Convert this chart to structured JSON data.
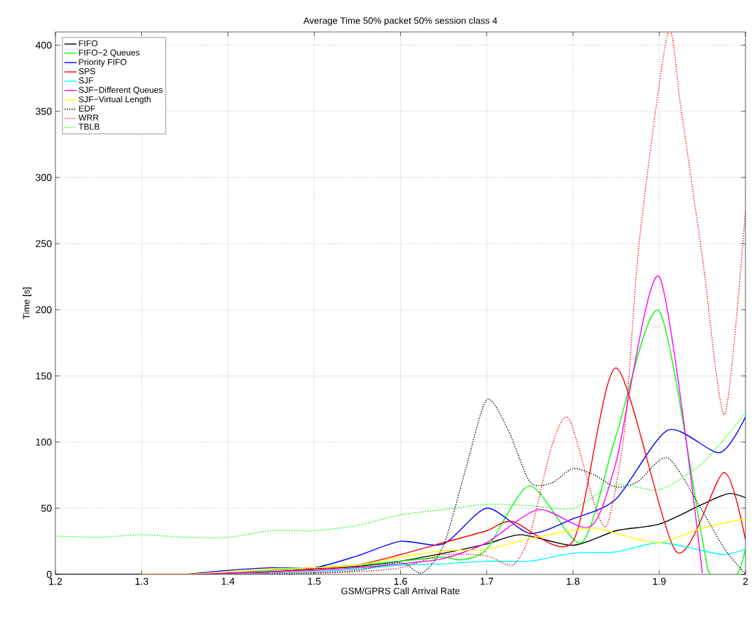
{
  "chart_data": {
    "type": "line",
    "title": "Average Time  50% packet  50% session  class 4",
    "xlabel": "GSM/GPRS Call Arrival Rate",
    "ylabel": "Time [s]",
    "xlim": [
      1.2,
      2
    ],
    "ylim": [
      0,
      410
    ],
    "xticks": [
      1.2,
      1.3,
      1.4,
      1.5,
      1.6,
      1.7,
      1.8,
      1.9,
      2
    ],
    "yticks": [
      0,
      50,
      100,
      150,
      200,
      250,
      300,
      350,
      400
    ],
    "grid": true,
    "legend": "top left",
    "series": [
      {
        "name": "FIFO",
        "color": "#000000",
        "line_style": "solid",
        "x": [
          1.2,
          1.25,
          1.3,
          1.35,
          1.4,
          1.45,
          1.5,
          1.55,
          1.6,
          1.65,
          1.7,
          1.74,
          1.8,
          1.85,
          1.9,
          1.95,
          1.98,
          2.0
        ],
        "values": [
          0,
          0,
          0,
          0,
          1,
          2,
          4,
          6,
          10,
          16,
          23,
          30,
          22,
          33,
          38,
          53,
          61,
          58
        ]
      },
      {
        "name": "FIFO−2 Queues",
        "color": "#00ff00",
        "line_style": "solid",
        "x": [
          1.35,
          1.4,
          1.45,
          1.5,
          1.55,
          1.6,
          1.65,
          1.67,
          1.7,
          1.75,
          1.81,
          1.85,
          1.9,
          1.95,
          1.96,
          1.99,
          2.0
        ],
        "values": [
          0,
          1,
          3,
          5,
          7,
          10,
          13,
          11,
          19,
          67,
          24,
          105,
          199,
          26,
          0,
          0,
          20
        ]
      },
      {
        "name": "Priority FIFO",
        "color": "#0000ff",
        "line_style": "solid",
        "x": [
          1.35,
          1.4,
          1.45,
          1.5,
          1.55,
          1.6,
          1.65,
          1.7,
          1.75,
          1.8,
          1.85,
          1.91,
          1.97,
          2.0
        ],
        "values": [
          0,
          3,
          5,
          5,
          14,
          25,
          23,
          50,
          31,
          42,
          57,
          109,
          92,
          119
        ]
      },
      {
        "name": "SPS",
        "color": "#ff0000",
        "line_style": "solid",
        "x": [
          1.35,
          1.4,
          1.45,
          1.5,
          1.55,
          1.6,
          1.65,
          1.7,
          1.73,
          1.8,
          1.85,
          1.92,
          1.975,
          2.0
        ],
        "values": [
          0,
          1,
          2,
          4,
          7,
          15,
          24,
          33,
          40,
          25,
          156,
          17,
          77,
          26
        ]
      },
      {
        "name": "SJF",
        "color": "#00ffff",
        "line_style": "solid",
        "x": [
          1.35,
          1.4,
          1.45,
          1.5,
          1.55,
          1.6,
          1.65,
          1.7,
          1.75,
          1.8,
          1.85,
          1.9,
          1.95,
          1.975,
          2.0
        ],
        "values": [
          0,
          0,
          1,
          2,
          4,
          7,
          8,
          10,
          10,
          16,
          17,
          24,
          18,
          15,
          19
        ]
      },
      {
        "name": "SJF−Different Queues",
        "color": "#ff00ff",
        "line_style": "solid",
        "x": [
          1.35,
          1.4,
          1.45,
          1.5,
          1.55,
          1.6,
          1.65,
          1.7,
          1.76,
          1.82,
          1.85,
          1.9,
          1.95
        ],
        "values": [
          0,
          1,
          2,
          3,
          5,
          8,
          12,
          24,
          49,
          36,
          85,
          225,
          1
        ]
      },
      {
        "name": "SJF−Virtual Length",
        "color": "#ffff00",
        "line_style": "solid",
        "x": [
          1.3,
          1.35,
          1.4,
          1.45,
          1.5,
          1.55,
          1.6,
          1.65,
          1.7,
          1.75,
          1.82,
          1.85,
          1.9,
          1.95,
          2.0
        ],
        "values": [
          0,
          0,
          2,
          4,
          5,
          7,
          13,
          18,
          19,
          27,
          35,
          31,
          24,
          35,
          42
        ]
      },
      {
        "name": "EDF",
        "color": "#000000",
        "line_style": "dotted",
        "x": [
          1.35,
          1.4,
          1.45,
          1.5,
          1.55,
          1.6,
          1.625,
          1.65,
          1.675,
          1.7,
          1.725,
          1.75,
          1.775,
          1.8,
          1.825,
          1.85,
          1.875,
          1.91,
          1.95,
          1.975,
          2.0
        ],
        "values": [
          0,
          0,
          0,
          1,
          3,
          9,
          1,
          22,
          78,
          132,
          109,
          70,
          69,
          80,
          75,
          66,
          70,
          88,
          48,
          20,
          0
        ]
      },
      {
        "name": "WRR",
        "color": "#ff0000",
        "line_style": "dotted",
        "x": [
          1.3,
          1.35,
          1.4,
          1.45,
          1.5,
          1.55,
          1.6,
          1.65,
          1.7,
          1.73,
          1.75,
          1.775,
          1.795,
          1.825,
          1.84,
          1.86,
          1.877,
          1.91,
          1.925,
          1.95,
          1.976,
          2.0
        ],
        "values": [
          0,
          0,
          0,
          1,
          1,
          2,
          5,
          15,
          14,
          7,
          30,
          96,
          118,
          53,
          38,
          110,
          252,
          409,
          353,
          240,
          121,
          275
        ]
      },
      {
        "name": "TBLB",
        "color": "#00ff00",
        "line_style": "dotted",
        "x": [
          1.2,
          1.25,
          1.3,
          1.35,
          1.4,
          1.45,
          1.5,
          1.55,
          1.6,
          1.65,
          1.7,
          1.75,
          1.8,
          1.85,
          1.9,
          1.95,
          2.0
        ],
        "values": [
          29,
          28,
          30,
          28,
          28,
          33,
          33,
          37,
          45,
          49,
          53,
          52,
          50,
          68,
          64,
          84,
          122
        ]
      }
    ]
  }
}
